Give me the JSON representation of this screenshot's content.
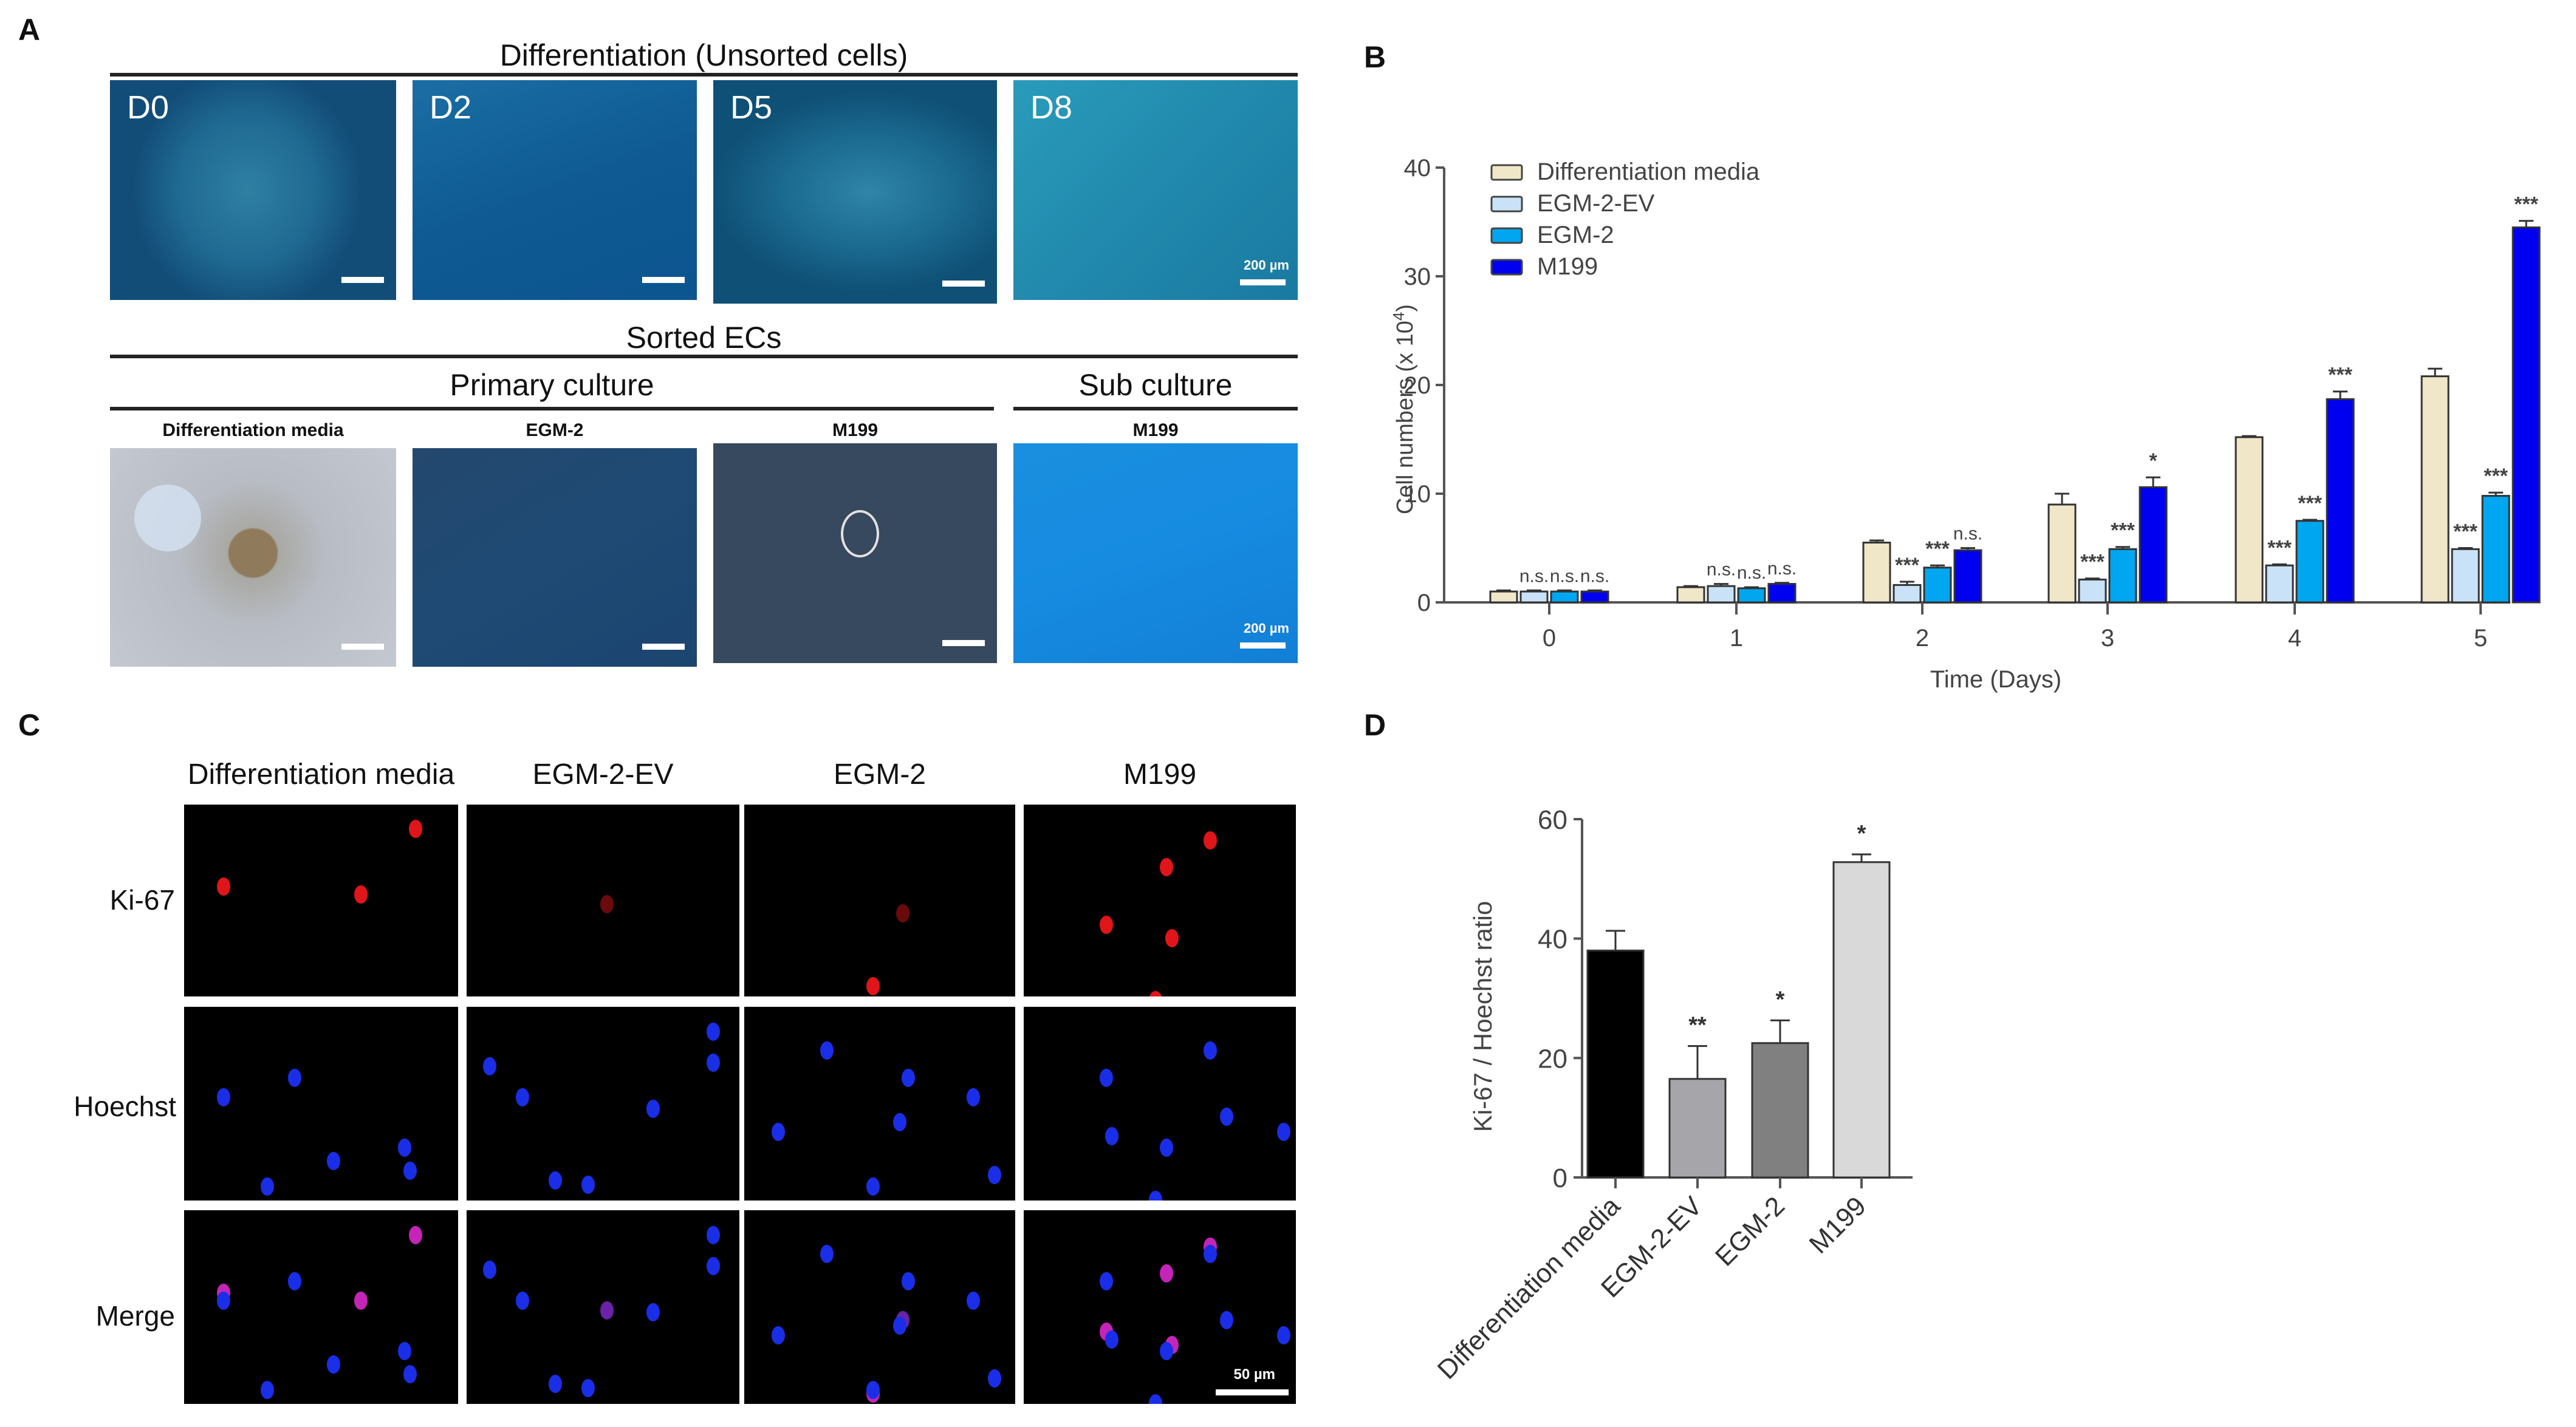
{
  "panels": {
    "A": {
      "letter": "A",
      "top_title": "Differentiation (Unsorted cells)",
      "top_images": [
        {
          "tag": "D0"
        },
        {
          "tag": "D2"
        },
        {
          "tag": "D5"
        },
        {
          "tag": "D8",
          "scale": "200 µm"
        }
      ],
      "sorted_title": "Sorted ECs",
      "primary_title": "Primary culture",
      "sub_title": "Sub culture",
      "bottom_images": [
        {
          "label": "Differentiation media"
        },
        {
          "label": "EGM-2"
        },
        {
          "label": "M199"
        },
        {
          "label": "M199",
          "scale": "200 µm"
        }
      ]
    },
    "B": {
      "letter": "B"
    },
    "C": {
      "letter": "C",
      "columns": [
        "Differentiation media",
        "EGM-2-EV",
        "EGM-2",
        "M199"
      ],
      "rows": [
        "Ki-67",
        "Hoechst",
        "Merge"
      ],
      "scale": "50 µm"
    },
    "D": {
      "letter": "D"
    }
  },
  "chart_data": [
    {
      "id": "B",
      "type": "bar",
      "title": "",
      "xlabel": "Time (Days)",
      "ylabel": "Cell numbers (x 10^4)",
      "ylabel_main": "Cell numbers (x 10",
      "ylabel_sup": "4",
      "ylabel_end": ")",
      "ylim": [
        0,
        40
      ],
      "yticks": [
        0,
        10,
        20,
        30,
        40
      ],
      "categories": [
        "0",
        "1",
        "2",
        "3",
        "4",
        "5"
      ],
      "legend_position": "top-left",
      "series": [
        {
          "name": "Differentiation media",
          "color": "#efe7c8",
          "values": [
            1.0,
            1.4,
            5.5,
            9.0,
            15.2,
            20.8
          ],
          "errors": [
            0.1,
            0.1,
            0.2,
            1.0,
            0.1,
            0.7
          ]
        },
        {
          "name": "EGM-2-EV",
          "color": "#c9e2f7",
          "values": [
            1.0,
            1.5,
            1.6,
            2.1,
            3.4,
            4.9
          ],
          "errors": [
            0.1,
            0.2,
            0.3,
            0.1,
            0.1,
            0.1
          ]
        },
        {
          "name": "EGM-2",
          "color": "#00a6ef",
          "values": [
            1.0,
            1.3,
            3.2,
            4.9,
            7.5,
            9.8
          ],
          "errors": [
            0.1,
            0.1,
            0.2,
            0.2,
            0.1,
            0.3
          ]
        },
        {
          "name": "M199",
          "color": "#0000f0",
          "values": [
            1.0,
            1.7,
            4.8,
            10.6,
            18.7,
            34.5
          ],
          "errors": [
            0.1,
            0.1,
            0.2,
            0.9,
            0.7,
            0.6
          ]
        }
      ],
      "annotations": [
        [
          "",
          "n.s.",
          "n.s.",
          "n.s."
        ],
        [
          "",
          "n.s.",
          "n.s.",
          "n.s."
        ],
        [
          "",
          "***",
          "***",
          "n.s."
        ],
        [
          "",
          "***",
          "***",
          "*"
        ],
        [
          "",
          "***",
          "***",
          "***"
        ],
        [
          "",
          "***",
          "***",
          "***"
        ]
      ]
    },
    {
      "id": "D",
      "type": "bar",
      "title": "",
      "xlabel": "",
      "ylabel": "Ki-67 / Hoechst ratio",
      "ylim": [
        0,
        60
      ],
      "yticks": [
        0,
        20,
        40,
        60
      ],
      "categories": [
        "Differentiation media",
        "EGM-2-EV",
        "EGM-2",
        "M199"
      ],
      "values": [
        38.0,
        16.5,
        22.5,
        52.8
      ],
      "errors": [
        3.3,
        5.5,
        3.8,
        1.3
      ],
      "colors": [
        "#000000",
        "#a6a6aa",
        "#808080",
        "#d9d9d9"
      ],
      "annotations": [
        "",
        "**",
        "*",
        "*"
      ]
    }
  ]
}
